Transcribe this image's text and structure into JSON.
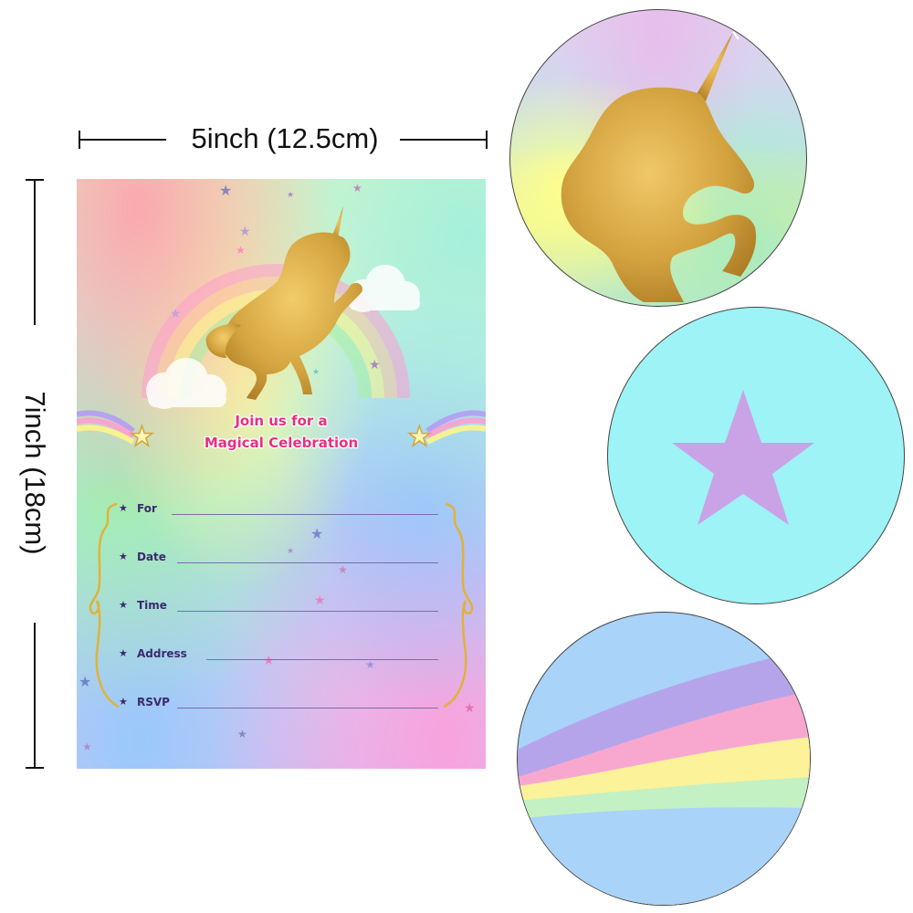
{
  "dimensions": {
    "width_label": "5inch (12.5cm)",
    "height_label": "7inch (18cm)"
  },
  "card": {
    "headline_line1": "Join us for a",
    "headline_line2": "Magical Celebration",
    "fields": [
      {
        "label": "For"
      },
      {
        "label": "Date"
      },
      {
        "label": "Time"
      },
      {
        "label": "Address"
      },
      {
        "label": "RSVP"
      }
    ],
    "colors": {
      "headline": "#e8307f",
      "field_text": "#3b2a6e",
      "gold": "#d4a540",
      "frame": "#e0b23a"
    }
  },
  "stickers": [
    {
      "name": "gold-unicorn-sticker"
    },
    {
      "name": "purple-star-sticker",
      "colors": {
        "background": "#9ef3f6",
        "star": "#c9a3e6"
      }
    },
    {
      "name": "rainbow-wave-sticker",
      "colors": [
        "#a9d3f8",
        "#b6a4ea",
        "#f8a8cf",
        "#fbf29a",
        "#c3f1c4",
        "#a9d3f8"
      ]
    }
  ]
}
